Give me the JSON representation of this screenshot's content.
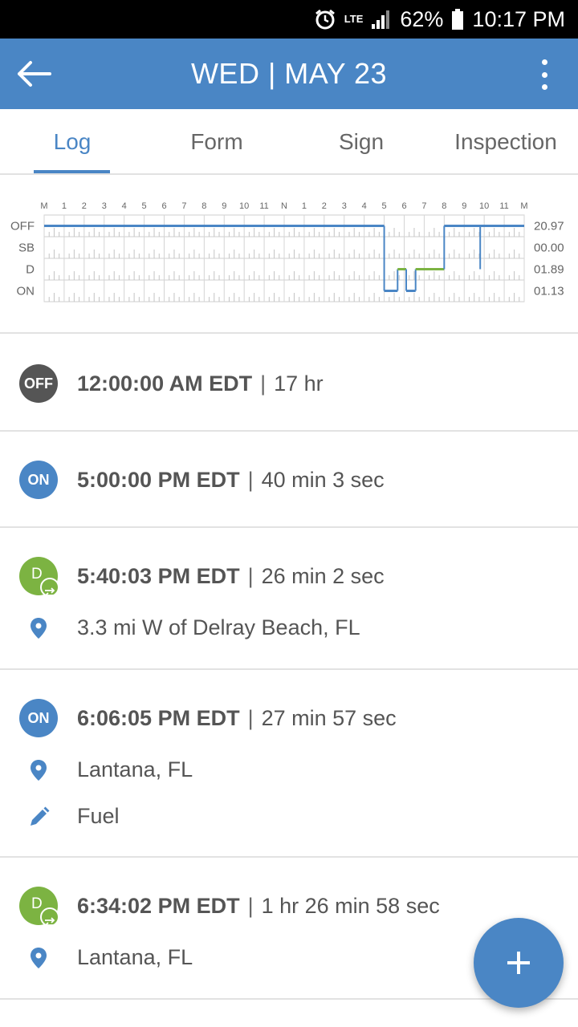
{
  "status_bar": {
    "network": "LTE",
    "battery": "62%",
    "time": "10:17 PM"
  },
  "app_bar": {
    "title": "WED | MAY 23"
  },
  "tabs": [
    {
      "label": "Log",
      "active": true
    },
    {
      "label": "Form",
      "active": false
    },
    {
      "label": "Sign",
      "active": false
    },
    {
      "label": "Inspection",
      "active": false
    }
  ],
  "chart_data": {
    "type": "line",
    "x_tick_labels": [
      "M",
      "1",
      "2",
      "3",
      "4",
      "5",
      "6",
      "7",
      "8",
      "9",
      "10",
      "11",
      "N",
      "1",
      "2",
      "3",
      "4",
      "5",
      "6",
      "7",
      "8",
      "9",
      "10",
      "11",
      "M"
    ],
    "status_labels": [
      "OFF",
      "SB",
      "D",
      "ON"
    ],
    "status_totals": [
      "20.97",
      "00.00",
      "01.89",
      "01.13"
    ],
    "xlim": [
      0,
      24
    ],
    "segments": [
      {
        "status": "OFF",
        "start": 0,
        "end": 17.0
      },
      {
        "status": "ON",
        "start": 17.0,
        "end": 17.67
      },
      {
        "status": "D",
        "start": 17.67,
        "end": 18.1
      },
      {
        "status": "ON",
        "start": 18.1,
        "end": 18.57
      },
      {
        "status": "D",
        "start": 18.57,
        "end": 20.0
      },
      {
        "status": "OFF",
        "start": 20.0,
        "end": 24.0
      }
    ],
    "spikes": [
      {
        "at": 21.8,
        "from": "OFF",
        "to": "D"
      }
    ],
    "colors": {
      "OFF": "#4a86c5",
      "SB": "#4a86c5",
      "D": "#7cb342",
      "ON": "#4a86c5",
      "transition": "#4a86c5"
    }
  },
  "log": [
    {
      "badge": "OFF",
      "time": "12:00:00 AM EDT",
      "duration": "17 hr"
    },
    {
      "badge": "ON",
      "time": "5:00:00 PM EDT",
      "duration": "40 min 3 sec"
    },
    {
      "badge": "D",
      "time": "5:40:03 PM EDT",
      "duration": "26 min 2 sec",
      "location": "3.3 mi W of Delray Beach, FL"
    },
    {
      "badge": "ON",
      "time": "6:06:05 PM EDT",
      "duration": "27 min 57 sec",
      "location": "Lantana, FL",
      "note": "Fuel"
    },
    {
      "badge": "D",
      "time": "6:34:02 PM EDT",
      "duration": "1 hr 26 min 58 sec",
      "location": "Lantana, FL"
    }
  ],
  "icons": {
    "back": "arrow-left-icon",
    "menu": "more-vertical-icon",
    "location": "map-pin-icon",
    "note": "pencil-icon",
    "add": "plus-icon",
    "alarm": "alarm-icon",
    "signal": "signal-icon",
    "battery": "battery-icon"
  },
  "colors": {
    "primary": "#4a86c5",
    "driving": "#7cb342",
    "off_duty": "#555555"
  }
}
